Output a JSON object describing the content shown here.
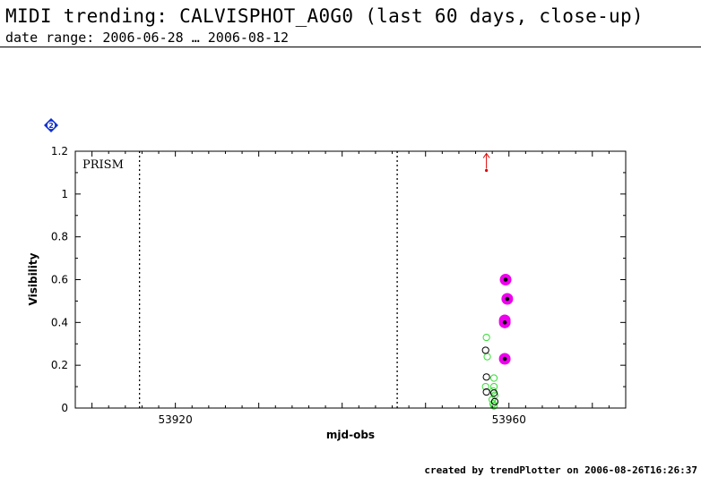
{
  "header": {
    "title": "MIDI trending: CALVISPHOT_A0G0 (last 60 days, close-up)",
    "subtitle": "date range: 2006-06-28 … 2006-08-12"
  },
  "badge": {
    "label": "2",
    "color": "#1030d0"
  },
  "footer": {
    "text": "created by trendPlotter on 2006-08-26T16:26:37"
  },
  "chart_data": {
    "type": "scatter",
    "title": "",
    "xlabel": "mjd-obs",
    "ylabel": "Visibility",
    "annotation": "PRISM",
    "xlim": [
      53908,
      53974
    ],
    "ylim": [
      0,
      1.2
    ],
    "x_ticks": [
      53920,
      53960
    ],
    "x_tick_labels": [
      "53920",
      "53960"
    ],
    "y_ticks": [
      0,
      0.2,
      0.4,
      0.6,
      0.8,
      1,
      1.2
    ],
    "y_tick_labels": [
      "0",
      "0.2",
      "0.4",
      "0.6",
      "0.8",
      "1",
      "1.2"
    ],
    "vertical_dotted_lines": [
      53915.7,
      53946.6
    ],
    "grid": false,
    "colors": {
      "axis": "#000000",
      "green": "#33dd33",
      "black": "#000000",
      "magenta": "#ee00ee",
      "red": "#dd0000"
    },
    "series": [
      {
        "marker": "open-circle",
        "color": "green",
        "points": [
          [
            53957.3,
            0.33
          ],
          [
            53957.4,
            0.24
          ],
          [
            53957.2,
            0.1
          ],
          [
            53958.2,
            0.14
          ],
          [
            53958.2,
            0.1
          ],
          [
            53958.1,
            0.08
          ],
          [
            53958.3,
            0.06
          ],
          [
            53958.0,
            0.04
          ],
          [
            53958.3,
            0.03
          ],
          [
            53958.1,
            0.02
          ],
          [
            53958.2,
            0.01
          ]
        ]
      },
      {
        "marker": "open-circle",
        "color": "black",
        "points": [
          [
            53957.2,
            0.27
          ],
          [
            53957.3,
            0.145
          ],
          [
            53957.3,
            0.075
          ],
          [
            53958.2,
            0.07
          ],
          [
            53958.3,
            0.03
          ]
        ]
      },
      {
        "marker": "filled-circle-halo",
        "color": "magenta",
        "points": [
          [
            53959.6,
            0.6
          ],
          [
            53959.8,
            0.51
          ],
          [
            53959.5,
            0.41
          ],
          [
            53959.5,
            0.4
          ],
          [
            53959.5,
            0.23
          ]
        ]
      },
      {
        "marker": "upper-limit-arrow",
        "color": "red",
        "points": [
          [
            53957.3,
            1.11
          ]
        ]
      }
    ]
  }
}
